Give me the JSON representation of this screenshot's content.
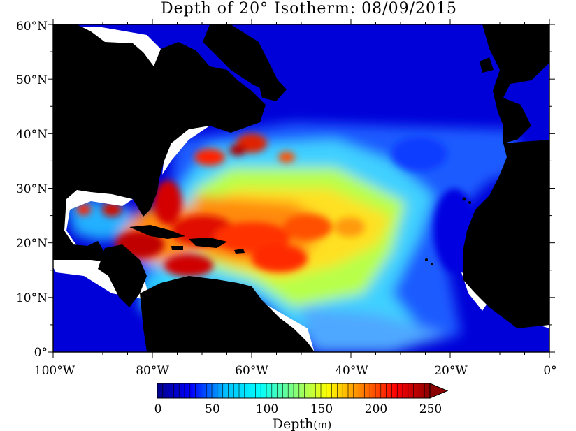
{
  "title": "Depth of 20° Isotherm: 08/09/2015",
  "map": {
    "lon_range": [
      -100,
      0
    ],
    "lat_range": [
      0,
      60
    ],
    "land_color": "#000000",
    "nodata_color": "#ffffff",
    "y_ticks": [
      "0°",
      "10°N",
      "20°N",
      "30°N",
      "40°N",
      "50°N",
      "60°N"
    ],
    "x_ticks": [
      "100°W",
      "80°W",
      "60°W",
      "40°W",
      "20°W",
      "0°"
    ]
  },
  "colorbar": {
    "min": 0,
    "max": 250,
    "tick_labels": [
      "0",
      "50",
      "100",
      "150",
      "200",
      "250"
    ],
    "label": "Depth",
    "unit": "(m)",
    "colors": [
      "#00008b",
      "#0000ff",
      "#00bfff",
      "#00ffff",
      "#7fff7f",
      "#ffff00",
      "#ff7f00",
      "#ff0000",
      "#8b0000"
    ]
  }
}
